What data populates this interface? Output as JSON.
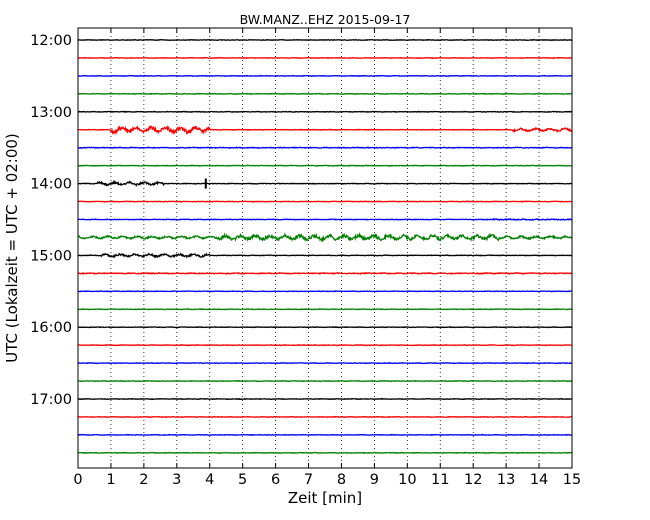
{
  "chart_data": {
    "type": "line",
    "title": "BW.MANZ..EHZ 2015-09-17",
    "xlabel": "Zeit  [min]",
    "ylabel": "UTC (Lokalzeit = UTC + 02:00)",
    "xlim": [
      0,
      15
    ],
    "x_ticks": [
      "0",
      "1",
      "2",
      "3",
      "4",
      "5",
      "6",
      "7",
      "8",
      "9",
      "10",
      "11",
      "12",
      "13",
      "14",
      "15"
    ],
    "y_ticks": [
      "12:00",
      "13:00",
      "14:00",
      "15:00",
      "16:00",
      "17:00"
    ],
    "trace_interval_min": 15,
    "first_trace": "12:00",
    "trace_count": 24,
    "grid": "vertical dotted at each minute",
    "trace_colors": [
      "#000000",
      "#ff0000",
      "#0000ff",
      "#008000"
    ]
  }
}
